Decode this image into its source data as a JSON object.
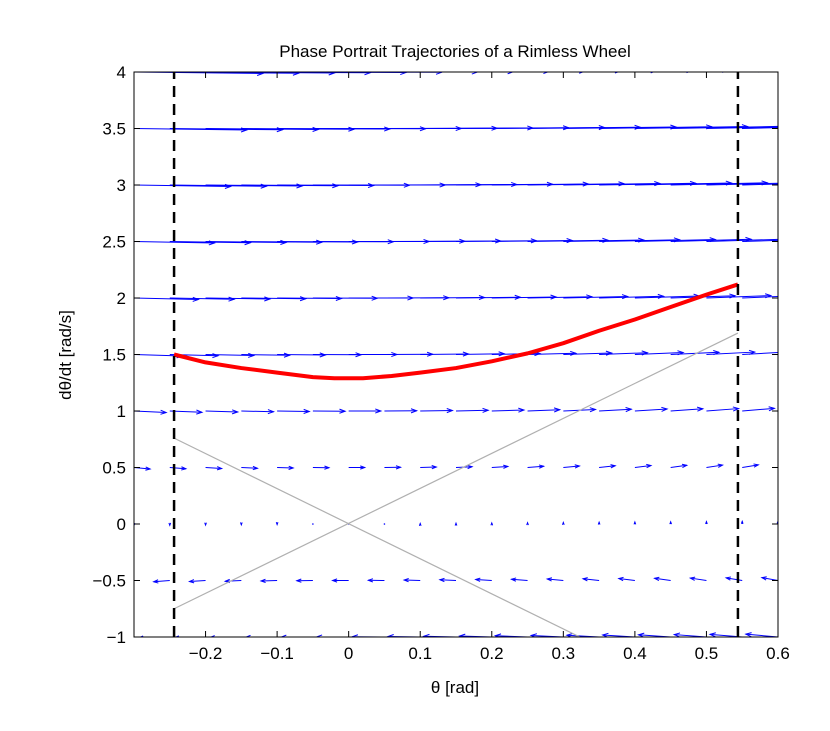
{
  "chart_data": {
    "type": "quiver",
    "title": "Phase Portrait Trajectories of a Rimless Wheel",
    "xlabel": "θ [rad]",
    "ylabel": "dθ/dt [rad/s]",
    "xlim": [
      -0.3,
      0.6
    ],
    "ylim": [
      -1,
      4
    ],
    "grid": false,
    "xticks": [
      -0.2,
      -0.1,
      0,
      0.1,
      0.2,
      0.3,
      0.4,
      0.5,
      0.6
    ],
    "xtick_labels": [
      "−0.2",
      "−0.1",
      "0",
      "0.1",
      "0.2",
      "0.3",
      "0.4",
      "0.5",
      "0.6"
    ],
    "yticks": [
      -1,
      -0.5,
      0,
      0.5,
      1,
      1.5,
      2,
      2.5,
      3,
      3.5,
      4
    ],
    "ytick_labels": [
      "−1",
      "−0.5",
      "0",
      "0.5",
      "1",
      "1.5",
      "2",
      "2.5",
      "3",
      "3.5",
      "4"
    ],
    "vector_field": {
      "color": "#0000ff",
      "x_grid": [
        -0.3,
        -0.25,
        -0.2,
        -0.15,
        -0.1,
        -0.05,
        0,
        0.05,
        0.1,
        0.15,
        0.2,
        0.25,
        0.3,
        0.35,
        0.4,
        0.45,
        0.5,
        0.55,
        0.6
      ],
      "y_grid": [
        -1,
        -0.5,
        0,
        0.5,
        1,
        1.5,
        2,
        2.5,
        3,
        3.5,
        4
      ],
      "field": "dθ = dθ/dt, d(dθ/dt) = sin(θ)"
    },
    "series": [
      {
        "color": "#ff0000",
        "style": "thick-solid",
        "x": [
          -0.244,
          -0.2,
          -0.15,
          -0.1,
          -0.05,
          -0.02,
          0.02,
          0.06,
          0.1,
          0.15,
          0.2,
          0.25,
          0.3,
          0.35,
          0.4,
          0.45,
          0.5,
          0.544
        ],
        "y": [
          1.5,
          1.43,
          1.38,
          1.34,
          1.3,
          1.29,
          1.29,
          1.31,
          1.34,
          1.38,
          1.44,
          1.51,
          1.6,
          1.71,
          1.81,
          1.92,
          2.03,
          2.12
        ]
      },
      {
        "color": "#b0b0b0",
        "style": "thin-solid",
        "x": [
          -0.244,
          0.544
        ],
        "y": [
          -0.75,
          1.69
        ]
      },
      {
        "color": "#b0b0b0",
        "style": "thin-solid",
        "x": [
          -0.244,
          0.323
        ],
        "y": [
          0.76,
          -1.0
        ]
      },
      {
        "color": "#000000",
        "style": "dashed",
        "x": [
          -0.244,
          -0.244
        ],
        "y": [
          -1,
          4
        ]
      },
      {
        "color": "#000000",
        "style": "dashed",
        "x": [
          0.544,
          0.544
        ],
        "y": [
          -1,
          4
        ]
      }
    ]
  }
}
